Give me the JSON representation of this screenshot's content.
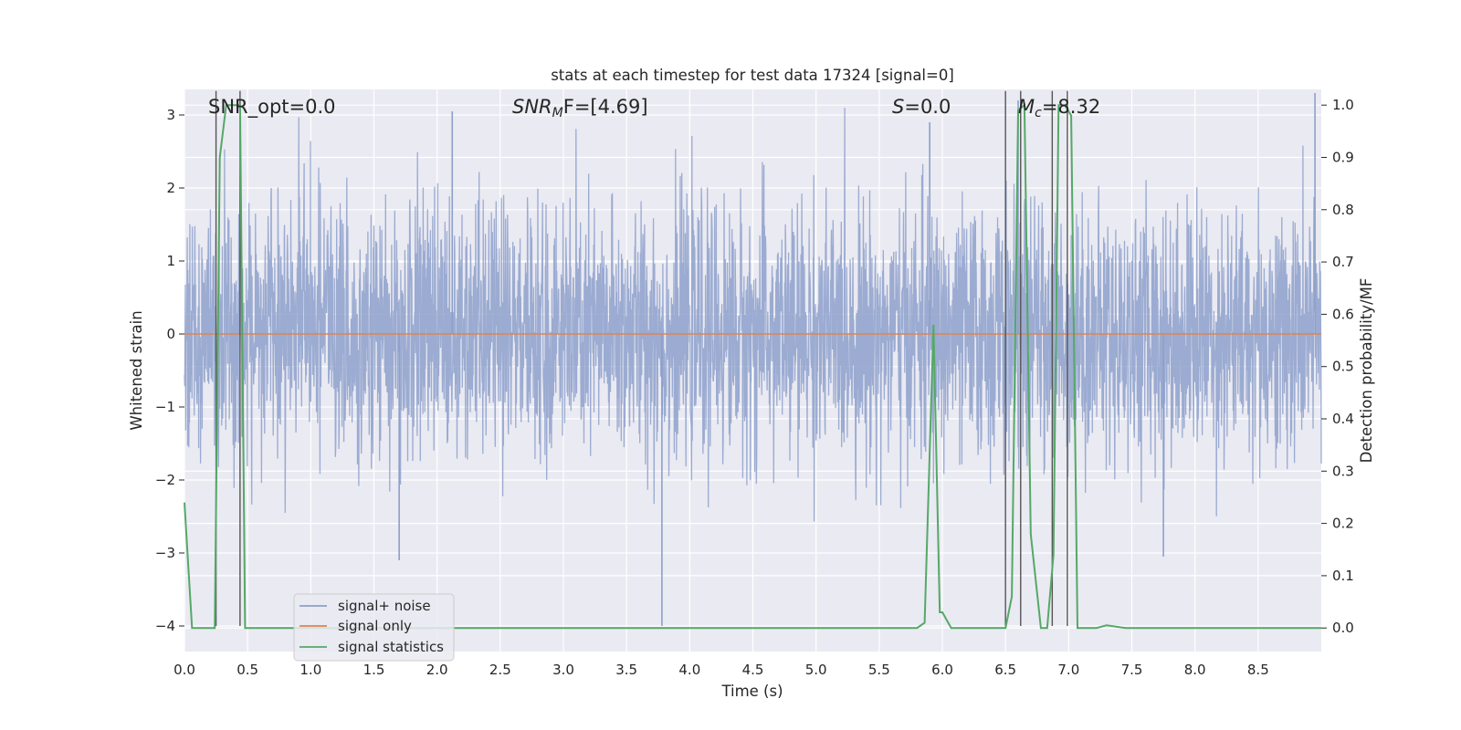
{
  "chart_data": {
    "type": "line",
    "title": "stats at each timestep for test data 17324 [signal=0]",
    "xlabel": "Time (s)",
    "ylabel_left": "Whitened strain",
    "ylabel_right": "Detection probability/MF",
    "xlim": [
      0.0,
      9.0
    ],
    "ylim_left": [
      -4.35,
      3.35
    ],
    "ylim_right": [
      -0.045,
      1.03
    ],
    "x_ticks": [
      "0.0",
      "0.5",
      "1.0",
      "1.5",
      "2.0",
      "2.5",
      "3.0",
      "3.5",
      "4.0",
      "4.5",
      "5.0",
      "5.5",
      "6.0",
      "6.5",
      "7.0",
      "7.5",
      "8.0",
      "8.5"
    ],
    "y_left_ticks": [
      "3",
      "2",
      "1",
      "0",
      "−1",
      "−2",
      "−3",
      "−4"
    ],
    "y_right_ticks": [
      "1.0",
      "0.9",
      "0.8",
      "0.7",
      "0.6",
      "0.5",
      "0.4",
      "0.3",
      "0.2",
      "0.1",
      "0.0"
    ],
    "grid": true,
    "legend_position": "lower-left",
    "annotations": {
      "snr_opt": "SNR_opt=0.0",
      "snr_mf_sym": "SNR",
      "snr_mf_sub": "M",
      "snr_mf_rest": "F=[4.69]",
      "s_sym": "S",
      "s_rest": "=0.0",
      "mc_sym": "M",
      "mc_sub": "c",
      "mc_rest": "=8.32"
    },
    "series": [
      {
        "name": "signal+ noise",
        "color": "#8da0cb",
        "kind": "noise",
        "sigma": 0.85,
        "spikes": [
          {
            "x": 3.78,
            "y": -4.0
          },
          {
            "x": 1.7,
            "y": -3.1
          },
          {
            "x": 7.75,
            "y": -3.05
          },
          {
            "x": 8.95,
            "y": 3.3
          },
          {
            "x": 6.6,
            "y": 3.2
          },
          {
            "x": 2.12,
            "y": 3.05
          },
          {
            "x": 5.9,
            "y": 2.9
          }
        ]
      },
      {
        "name": "signal only",
        "color": "#dd8452",
        "kind": "constant",
        "value": 0.0
      },
      {
        "name": "signal statistics",
        "color": "#55a868",
        "kind": "line",
        "axis": "right",
        "x": [
          0.0,
          0.06,
          0.1,
          0.24,
          0.28,
          0.33,
          0.37,
          0.44,
          0.48,
          0.55,
          0.7,
          1.0,
          2.0,
          3.0,
          4.0,
          5.0,
          5.8,
          5.86,
          5.93,
          5.98,
          6.0,
          6.07,
          6.5,
          6.55,
          6.6,
          6.65,
          6.7,
          6.78,
          6.83,
          6.88,
          6.92,
          6.97,
          7.02,
          7.07,
          7.15,
          7.22,
          7.3,
          7.45,
          8.0,
          8.35,
          9.0
        ],
        "y": [
          0.24,
          0.0,
          0.0,
          0.0,
          0.9,
          1.0,
          1.0,
          1.0,
          0.0,
          0.0,
          0.0,
          0.0,
          0.0,
          0.0,
          0.0,
          0.0,
          0.0,
          0.01,
          0.58,
          0.03,
          0.03,
          0.0,
          0.0,
          0.06,
          0.99,
          1.0,
          0.18,
          0.0,
          0.0,
          0.14,
          1.0,
          1.0,
          0.98,
          0.0,
          0.0,
          0.0,
          0.005,
          0.0,
          0.0,
          0.0,
          0.0
        ]
      }
    ],
    "vertical_lines": [
      0.25,
      0.44,
      6.5,
      6.62,
      6.87,
      6.99
    ]
  }
}
